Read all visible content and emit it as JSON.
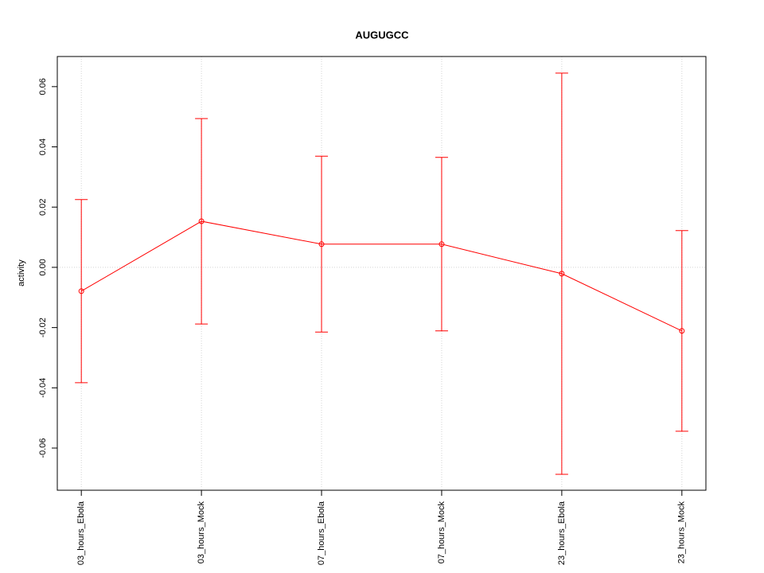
{
  "chart_data": {
    "type": "errorbar-line",
    "title": "AUGUGCC",
    "y_label": "activity",
    "categories": [
      "03_hours_Ebola",
      "03_hours_Mock",
      "07_hours_Ebola",
      "07_hours_Mock",
      "23_hours_Ebola",
      "23_hours_Mock"
    ],
    "series": [
      {
        "color": "#ff0000",
        "values": [
          -0.0079,
          0.0153,
          0.0077,
          0.0077,
          -0.0021,
          -0.0211
        ],
        "errors": [
          0.0304,
          0.0341,
          0.0292,
          0.0288,
          0.0666,
          0.0333
        ]
      }
    ],
    "ylim": [
      -0.074,
      0.07
    ],
    "yticks": [
      {
        "value": -0.06,
        "label": "-0.06"
      },
      {
        "value": -0.04,
        "label": "-0.04"
      },
      {
        "value": -0.02,
        "label": "-0.02"
      },
      {
        "value": 0,
        "label": "0.00"
      },
      {
        "value": 0.02,
        "label": "0.02"
      },
      {
        "value": 0.04,
        "label": "0.04"
      },
      {
        "value": 0.06,
        "label": "0.06"
      }
    ],
    "hline": 0,
    "grid": true
  }
}
